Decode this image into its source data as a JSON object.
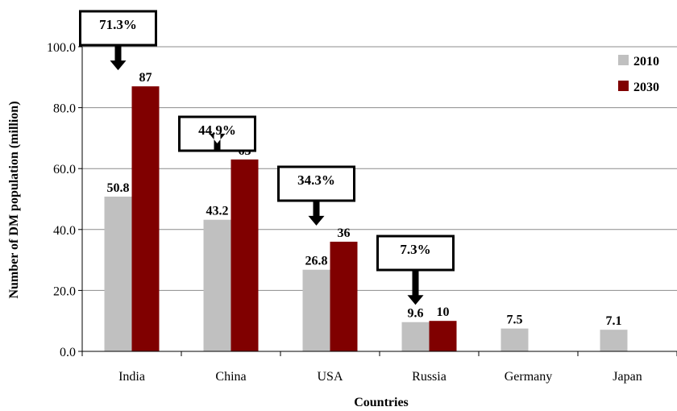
{
  "chart_data": {
    "type": "bar",
    "title": "",
    "xlabel": "Countries",
    "ylabel": "Number of DM population (million)",
    "ylim": [
      0,
      100
    ],
    "yticks": [
      "0.0",
      "20.0",
      "40.0",
      "60.0",
      "80.0",
      "100.0"
    ],
    "grid": true,
    "legend_position": "top-right",
    "categories": [
      "India",
      "China",
      "USA",
      "Russia",
      "Germany",
      "Japan"
    ],
    "series": [
      {
        "name": "2010",
        "color": "#C0C0C0",
        "values": [
          50.8,
          43.2,
          26.8,
          9.6,
          7.5,
          7.1
        ],
        "labels": [
          "50.8",
          "43.2",
          "26.8",
          "9.6",
          "7.5",
          "7.1"
        ]
      },
      {
        "name": "2030",
        "color": "#800000",
        "values": [
          87,
          63,
          36,
          10,
          null,
          null
        ],
        "labels": [
          "87",
          "63",
          "36",
          "10",
          "",
          ""
        ]
      }
    ],
    "annotations": [
      {
        "category": "India",
        "text": "71.3%"
      },
      {
        "category": "China",
        "text": "44.9%"
      },
      {
        "category": "USA",
        "text": "34.3%"
      },
      {
        "category": "Russia",
        "text": "7.3%"
      }
    ]
  }
}
